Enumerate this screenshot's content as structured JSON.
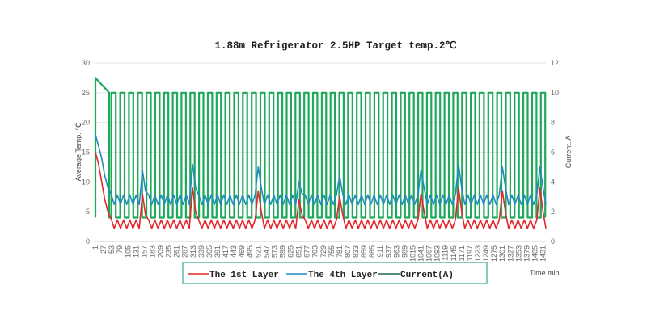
{
  "chart_data": {
    "type": "line",
    "title": "1.88m Refrigerator  2.5HP  Target temp.2℃",
    "xlabel": "Time.min",
    "ylabel": "Average Temp. ℃",
    "y2label": "Current. A",
    "xlim": [
      1,
      1440
    ],
    "ylim": [
      0,
      30
    ],
    "y2lim": [
      0,
      12
    ],
    "yticks": [
      "0",
      "5",
      "10",
      "15",
      "20",
      "25",
      "30"
    ],
    "y2ticks": [
      "0",
      "2",
      "4",
      "6",
      "8",
      "10",
      "12"
    ],
    "xticks": [
      "1",
      "27",
      "53",
      "79",
      "105",
      "131",
      "157",
      "183",
      "209",
      "235",
      "261",
      "287",
      "313",
      "339",
      "365",
      "391",
      "417",
      "443",
      "469",
      "495",
      "521",
      "547",
      "573",
      "599",
      "625",
      "651",
      "677",
      "703",
      "729",
      "755",
      "781",
      "807",
      "833",
      "859",
      "885",
      "911",
      "937",
      "963",
      "989",
      "1015",
      "1041",
      "1067",
      "1093",
      "1119",
      "1145",
      "1171",
      "1197",
      "1223",
      "1249",
      "1275",
      "1301",
      "1327",
      "1353",
      "1379",
      "1405",
      "1431"
    ],
    "grid": true,
    "legend_position": "bottom",
    "sample_interval_min": 10,
    "series": [
      {
        "name": "The 1st Layer",
        "axis": "left",
        "color": "#e5262a",
        "values": [
          15,
          13,
          10,
          7,
          5,
          3.8,
          2.2,
          3.6,
          2.2,
          3.6,
          2.2,
          3.6,
          2.2,
          3.6,
          2.2,
          8,
          4.5,
          3.6,
          2.2,
          3.6,
          2.2,
          3.6,
          2.2,
          3.6,
          2.2,
          3.6,
          2.2,
          3.6,
          2.2,
          3.6,
          2.2,
          9,
          5,
          3.6,
          2.2,
          3.6,
          2.2,
          3.6,
          2.2,
          3.6,
          2.2,
          3.6,
          2.2,
          3.6,
          2.2,
          3.6,
          2.2,
          3.6,
          2.2,
          3.6,
          2.2,
          3.6,
          8.5,
          5,
          2.2,
          3.6,
          2.2,
          3.6,
          2.2,
          3.6,
          2.2,
          3.6,
          2.2,
          3.6,
          2.2,
          7,
          4.5,
          3.6,
          2.2,
          3.6,
          2.2,
          3.6,
          2.2,
          3.6,
          2.2,
          3.6,
          2.2,
          3.6,
          7.5,
          4.5,
          2.2,
          3.6,
          2.2,
          3.6,
          2.2,
          3.6,
          2.2,
          3.6,
          2.2,
          3.6,
          2.2,
          3.6,
          2.2,
          3.6,
          2.2,
          3.6,
          2.2,
          3.6,
          2.2,
          3.6,
          2.2,
          3.6,
          2.2,
          3.6,
          8,
          5,
          2.2,
          3.6,
          2.2,
          3.6,
          2.2,
          3.6,
          2.2,
          3.6,
          2.2,
          3.6,
          9,
          5,
          2.2,
          3.6,
          2.2,
          3.6,
          2.2,
          3.6,
          2.2,
          3.6,
          2.2,
          3.6,
          2.2,
          3.6,
          8.5,
          4.8,
          2.2,
          3.6,
          2.2,
          3.6,
          2.2,
          3.6,
          2.2,
          3.6,
          2.2,
          3.6,
          9,
          5,
          2.2
        ]
      },
      {
        "name": "The 4th Layer",
        "axis": "left",
        "color": "#1f8bc4",
        "values": [
          18,
          16,
          14,
          11,
          9,
          8,
          6.2,
          7.8,
          6.2,
          7.8,
          6.2,
          7.8,
          6.2,
          7.8,
          6.2,
          12,
          8.5,
          7.8,
          6.2,
          7.8,
          6.2,
          7.8,
          6.2,
          7.8,
          6.2,
          7.8,
          6.2,
          7.8,
          6.2,
          7.8,
          6.2,
          13,
          9,
          7.8,
          6.2,
          7.8,
          6.2,
          7.8,
          6.2,
          7.8,
          6.2,
          7.8,
          6.2,
          7.8,
          6.2,
          7.8,
          6.2,
          7.8,
          6.2,
          7.8,
          6.2,
          7.8,
          12.5,
          9,
          6.2,
          7.8,
          6.2,
          7.8,
          6.2,
          7.8,
          6.2,
          7.8,
          6.2,
          7.8,
          6.2,
          10,
          8,
          7.8,
          6.2,
          7.8,
          6.2,
          7.8,
          6.2,
          7.8,
          6.2,
          7.8,
          6.2,
          7.8,
          11,
          8,
          6.2,
          7.8,
          6.2,
          7.8,
          6.2,
          7.8,
          6.2,
          7.8,
          6.2,
          7.8,
          6.2,
          7.8,
          6.2,
          7.8,
          6.2,
          7.8,
          6.2,
          7.8,
          6.2,
          7.8,
          6.2,
          7.8,
          6.2,
          7.8,
          12,
          9,
          6.2,
          7.8,
          6.2,
          7.8,
          6.2,
          7.8,
          6.2,
          7.8,
          6.2,
          7.8,
          13,
          9,
          6.2,
          7.8,
          6.2,
          7.8,
          6.2,
          7.8,
          6.2,
          7.8,
          6.2,
          7.8,
          6.2,
          7.8,
          12.5,
          9,
          6.2,
          7.8,
          6.2,
          7.8,
          6.2,
          7.8,
          6.2,
          7.8,
          6.2,
          7.8,
          12.5,
          9,
          6.2
        ]
      },
      {
        "name": "Current(A)",
        "axis": "right",
        "color": "#1ea85a",
        "on_level": 10,
        "off_level": 1.6,
        "initial_on": [
          1,
          45
        ],
        "initial_level": 11,
        "on_duration_min": 14,
        "on_starts": [
          52,
          80,
          108,
          136,
          164,
          192,
          220,
          248,
          276,
          304,
          332,
          360,
          388,
          416,
          444,
          472,
          500,
          528,
          556,
          584,
          612,
          640,
          668,
          696,
          724,
          752,
          780,
          808,
          836,
          864,
          892,
          920,
          948,
          976,
          1004,
          1032,
          1060,
          1088,
          1116,
          1144,
          1172,
          1200,
          1228,
          1256,
          1284,
          1312,
          1340,
          1368,
          1396,
          1424
        ]
      }
    ]
  }
}
